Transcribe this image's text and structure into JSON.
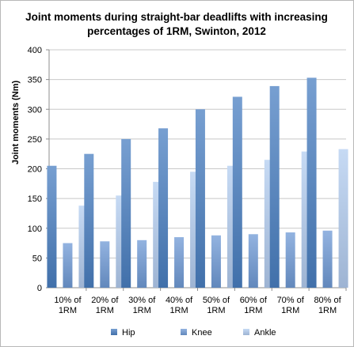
{
  "chart_data": {
    "type": "bar",
    "title_lines": [
      "Joint moments during straight-bar deadlifts with increasing",
      "percentages of 1RM, Swinton, 2012"
    ],
    "xlabel": "",
    "ylabel": "Joint moments (Nm)",
    "ylim": [
      0,
      400
    ],
    "yticks": [
      0,
      50,
      100,
      150,
      200,
      250,
      300,
      350,
      400
    ],
    "grid": true,
    "legend_position": "bottom",
    "categories": [
      [
        "10% of",
        "1RM"
      ],
      [
        "20% of",
        "1RM"
      ],
      [
        "30% of",
        "1RM"
      ],
      [
        "40% of",
        "1RM"
      ],
      [
        "50% of",
        "1RM"
      ],
      [
        "60% of",
        "1RM"
      ],
      [
        "70% of",
        "1RM"
      ],
      [
        "80% of",
        "1RM"
      ]
    ],
    "series": [
      {
        "name": "Hip",
        "color": "#4a7fc1",
        "values": [
          205,
          225,
          250,
          268,
          300,
          321,
          339,
          353
        ]
      },
      {
        "name": "Knee",
        "color": "#6f9ad6",
        "values": [
          75,
          78,
          80,
          85,
          88,
          90,
          93,
          96
        ]
      },
      {
        "name": "Ankle",
        "color": "#b3cdf0",
        "values": [
          138,
          155,
          178,
          195,
          205,
          215,
          229,
          233
        ]
      }
    ]
  }
}
